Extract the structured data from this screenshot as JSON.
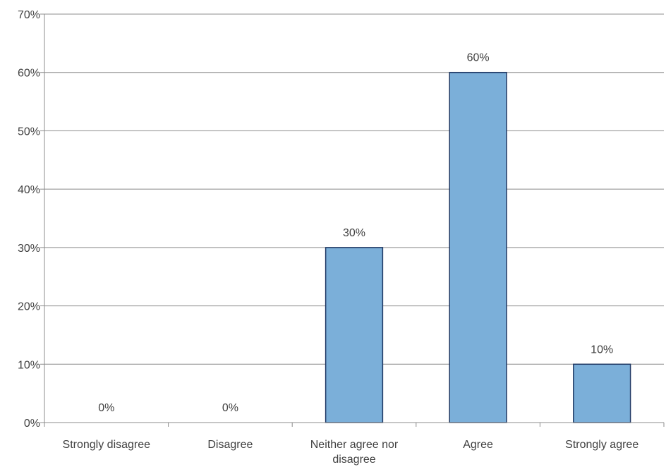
{
  "chart_data": {
    "type": "bar",
    "title": "",
    "xlabel": "",
    "ylabel": "",
    "categories": [
      "Strongly disagree",
      "Disagree",
      "Neither agree nor disagree",
      "Agree",
      "Strongly agree"
    ],
    "category_label_lines": [
      [
        "Strongly disagree"
      ],
      [
        "Disagree"
      ],
      [
        "Neither agree nor",
        "disagree"
      ],
      [
        "Agree"
      ],
      [
        "Strongly agree"
      ]
    ],
    "values": [
      0,
      0,
      30,
      60,
      10
    ],
    "data_labels": [
      "0%",
      "0%",
      "30%",
      "60%",
      "10%"
    ],
    "ylim": [
      0,
      70
    ],
    "yticks": [
      0,
      10,
      20,
      30,
      40,
      50,
      60,
      70
    ],
    "ytick_labels": [
      "0%",
      "10%",
      "20%",
      "30%",
      "40%",
      "50%",
      "60%",
      "70%"
    ],
    "grid": true,
    "legend": "none",
    "colors": {
      "bar_fill": "#7bafd9",
      "bar_stroke": "#1f3864",
      "grid": "#8c8c8c",
      "axis": "#8c8c8c",
      "text": "#404040"
    }
  }
}
